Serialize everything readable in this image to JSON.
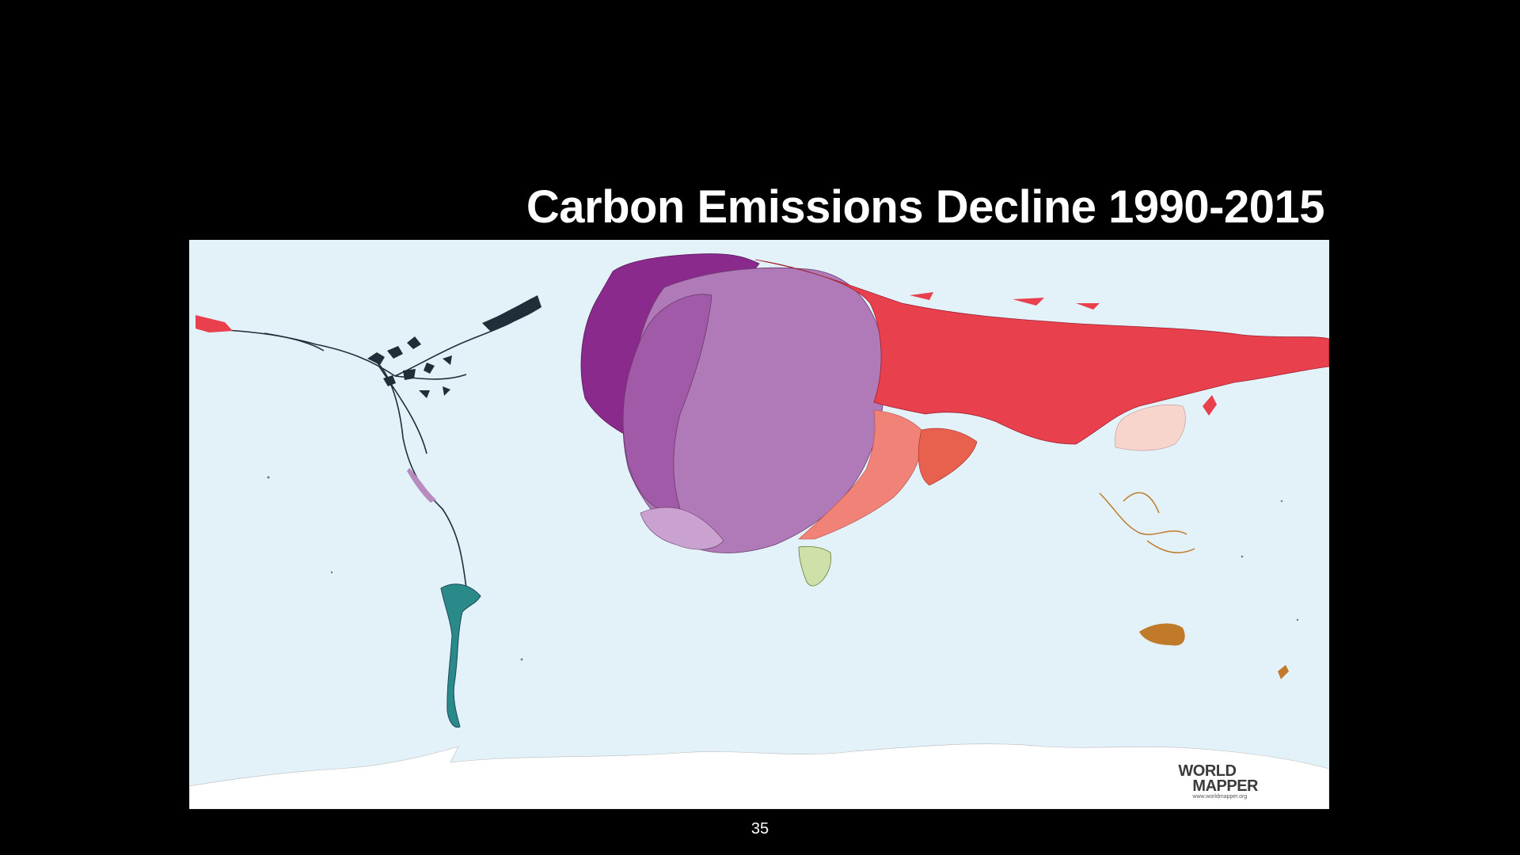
{
  "slide": {
    "title": "Carbon Emissions Decline 1990-2015",
    "page_number": "35"
  },
  "map": {
    "type": "cartogram",
    "background_color": "#e3f2f9",
    "colors": {
      "europe_dark": "#8a2a8c",
      "europe_mid": "#a05aa8",
      "europe_main": "#b07ab8",
      "europe_light": "#c9a2cf",
      "russia": "#e8404c",
      "central_asia": "#f08278",
      "asia_light": "#f7d4cc",
      "americas": "#1f2f3a",
      "south_america": "#2a8a8a",
      "africa": "#cfe0a8",
      "oceania": "#c07a2a",
      "antarctica": "#ffffff"
    },
    "logo": {
      "line1": "WORLD",
      "line2": "MAPPER",
      "url": "www.worldmapper.org"
    }
  }
}
